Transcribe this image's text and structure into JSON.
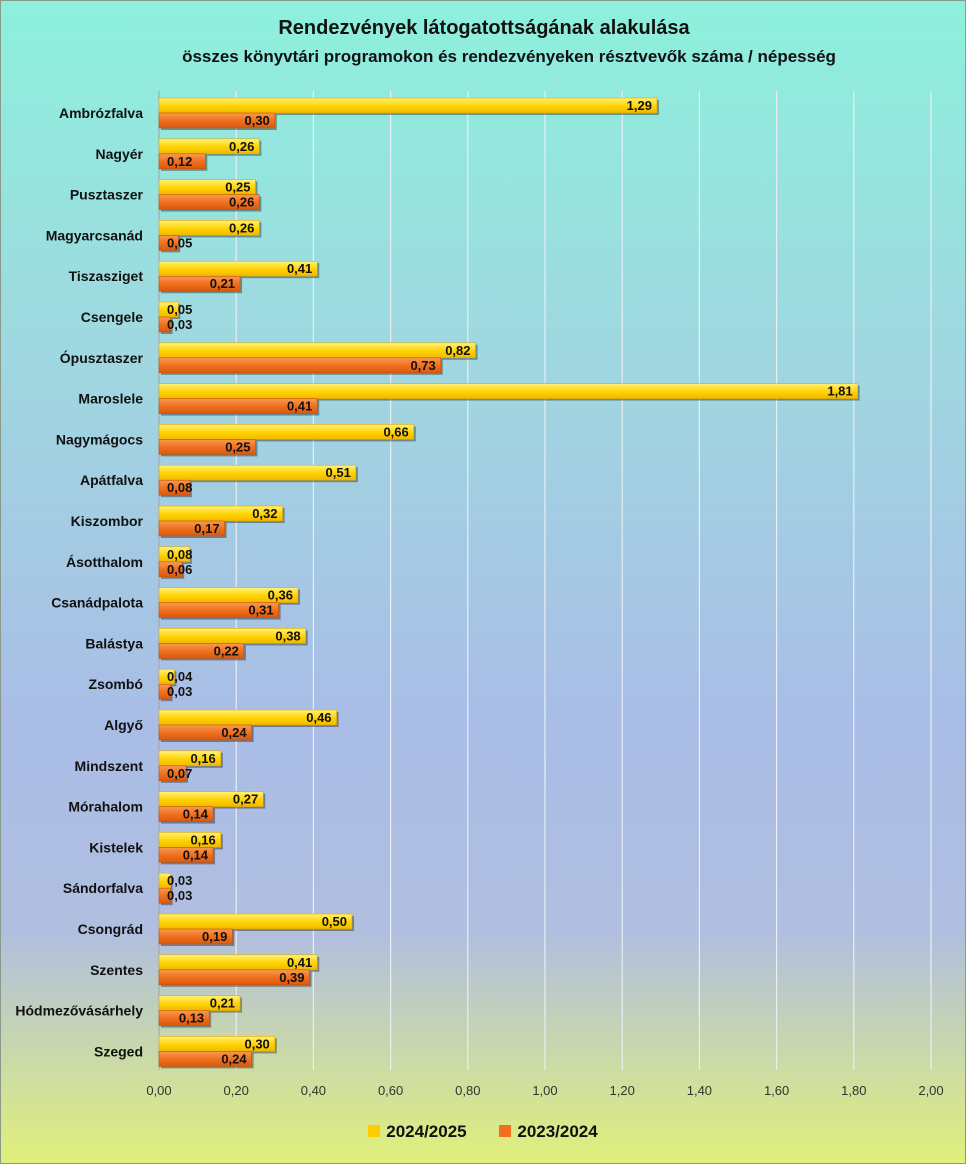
{
  "chart_data": {
    "type": "bar",
    "orientation": "horizontal",
    "title": "Rendezvények látogatottságának alakulása",
    "subtitle": "összes könyvtári programokon  és rendezvényeken résztvevők száma / népesség",
    "categories": [
      "Ambrózfalva",
      "Nagyér",
      "Pusztaszer",
      "Magyarcsanád",
      "Tiszasziget",
      "Csengele",
      "Ópusztaszer",
      "Maroslele",
      "Nagymágocs",
      "Apátfalva",
      "Kiszombor",
      "Ásotthalom",
      "Csanádpalota",
      "Balástya",
      "Zsombó",
      "Algyő",
      "Mindszent",
      "Mórahalom",
      "Kistelek",
      "Sándorfalva",
      "Csongrád",
      "Szentes",
      "Hódmezővásárhely",
      "Szeged"
    ],
    "series": [
      {
        "name": "2024/2025",
        "color": "#ffcc00",
        "values": [
          1.29,
          0.26,
          0.25,
          0.26,
          0.41,
          0.05,
          0.82,
          1.81,
          0.66,
          0.51,
          0.32,
          0.08,
          0.36,
          0.38,
          0.04,
          0.46,
          0.16,
          0.27,
          0.16,
          0.03,
          0.5,
          0.41,
          0.21,
          0.3
        ]
      },
      {
        "name": "2023/2024",
        "color": "#f07020",
        "values": [
          0.3,
          0.12,
          0.26,
          0.05,
          0.21,
          0.03,
          0.73,
          0.41,
          0.25,
          0.08,
          0.17,
          0.06,
          0.31,
          0.22,
          0.03,
          0.24,
          0.07,
          0.14,
          0.14,
          0.03,
          0.19,
          0.39,
          0.13,
          0.24
        ]
      }
    ],
    "x_ticks": [
      "0,00",
      "0,20",
      "0,40",
      "0,60",
      "0,80",
      "1,00",
      "1,20",
      "1,40",
      "1,60",
      "1,80",
      "2,00"
    ],
    "xlim": [
      0,
      2
    ],
    "grid": true,
    "legend_position": "bottom",
    "decimal_separator": ","
  }
}
